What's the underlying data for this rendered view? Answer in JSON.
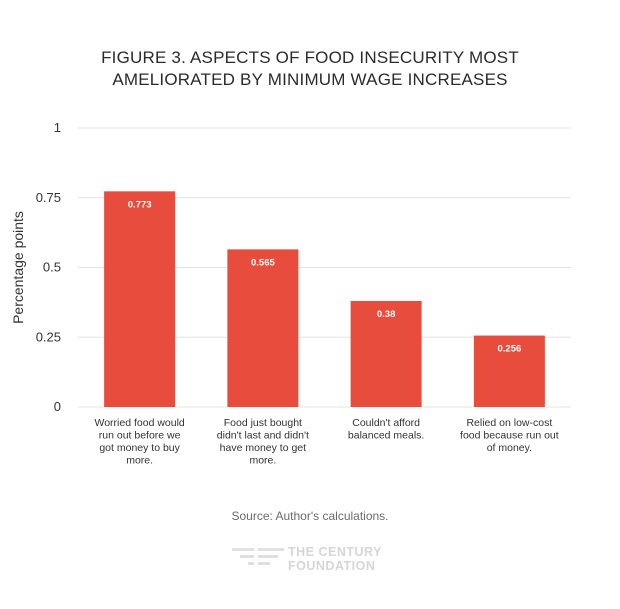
{
  "chart_data": {
    "type": "bar",
    "title_lines": [
      "FIGURE 3. ASPECTS OF FOOD INSECURITY MOST",
      "AMELIORATED BY MINIMUM WAGE INCREASES"
    ],
    "ylabel": "Percentage points",
    "ylim": [
      0,
      1
    ],
    "yticks": [
      0,
      0.25,
      0.5,
      0.75,
      1
    ],
    "ytick_labels": [
      "0",
      "0.25",
      "0.5",
      "0.75",
      "1"
    ],
    "grid": true,
    "categories": [
      [
        "Worried food would",
        "run out before we",
        "got money to buy",
        "more."
      ],
      [
        "Food just bought",
        "didn't last and didn't",
        "have money to get",
        "more."
      ],
      [
        "Couldn't afford",
        "balanced meals."
      ],
      [
        "Relied on low-cost",
        "food because run out",
        "of money."
      ]
    ],
    "values": [
      0.773,
      0.565,
      0.38,
      0.256
    ],
    "data_labels": [
      "0.773",
      "0.565",
      "0.38",
      "0.256"
    ],
    "colors": {
      "bar": "#e84c3d",
      "grid": "#e3e3e3",
      "axis_text": "#333333",
      "bar_label": "#ffffff"
    }
  },
  "source": "Source: Author's calculations.",
  "logo": {
    "line1": "THE CENTURY",
    "line2": "FOUNDATION"
  }
}
